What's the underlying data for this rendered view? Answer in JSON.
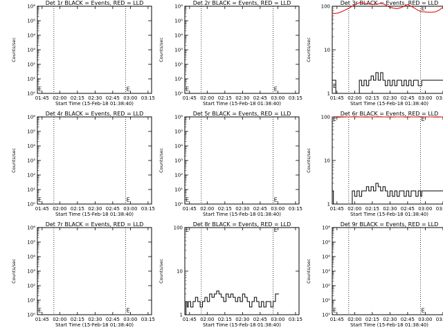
{
  "figure": {
    "x_ticks": [
      "01:45",
      "02:00",
      "02:15",
      "02:30",
      "02:45",
      "03:00",
      "03:15"
    ],
    "x_label": "Start Time (15-Feb-18 01:38:40)",
    "y_label": "Counts/sec",
    "colors": {
      "events": "#000000",
      "lld": "#e00000"
    }
  },
  "chart_data": [
    {
      "type": "line",
      "title": "Det 1r BLACK = Events, RED = LLD",
      "y_scale": "log",
      "yticks": [
        "10⁰",
        "10¹",
        "10²",
        "10³",
        "10⁴",
        "10⁵",
        "10⁶"
      ],
      "ylim": [
        1,
        1000000
      ],
      "xlim_minutes": [
        101,
        198
      ],
      "dotted_lines_minutes": [
        115,
        176
      ],
      "markers": [
        {
          "text": "E",
          "x_minutes": 101,
          "y": 2
        },
        {
          "text": "E",
          "x_minutes": 176,
          "y": 2
        }
      ],
      "series": []
    },
    {
      "type": "line",
      "title": "Det 2r BLACK = Events, RED = LLD",
      "y_scale": "log",
      "yticks": [
        "10⁰",
        "10¹",
        "10²",
        "10³",
        "10⁴",
        "10⁵",
        "10⁶"
      ],
      "ylim": [
        1,
        1000000
      ],
      "xlim_minutes": [
        101,
        198
      ],
      "dotted_lines_minutes": [
        115,
        176
      ],
      "markers": [
        {
          "text": "E",
          "x_minutes": 101,
          "y": 2
        },
        {
          "text": "E",
          "x_minutes": 176,
          "y": 2
        }
      ],
      "series": []
    },
    {
      "type": "line",
      "title": "Det 3r BLACK = Events, RED = LLD",
      "y_scale": "log",
      "yticks": [
        "1",
        "10",
        "100"
      ],
      "ylim": [
        1,
        100
      ],
      "xlim_minutes": [
        101,
        198
      ],
      "dotted_lines_minutes": [
        115,
        176
      ],
      "markers": [
        {
          "text": "E",
          "x_minutes": 101,
          "y": 1.5
        },
        {
          "text": "E",
          "x_minutes": 176,
          "y": 90
        }
      ],
      "series": [
        {
          "color": "#e00000",
          "style": "line",
          "x": [
            101,
            103,
            106,
            109,
            112,
            115,
            118,
            121,
            124,
            127,
            130,
            133,
            136,
            139,
            142,
            145,
            148,
            150,
            153,
            156,
            159,
            162,
            165,
            168,
            171,
            174,
            177,
            180,
            183,
            186,
            189,
            192,
            195,
            198
          ],
          "y": [
            70,
            68,
            70,
            75,
            82,
            90,
            100,
            110,
            120,
            118,
            115,
            112,
            110,
            112,
            115,
            112,
            100,
            95,
            90,
            88,
            92,
            100,
            110,
            100,
            90,
            80,
            75,
            74,
            73,
            73,
            75,
            82,
            95,
            110
          ]
        },
        {
          "color": "#000000",
          "style": "step",
          "x": [
            101,
            103,
            104,
            122,
            124,
            126,
            128,
            130,
            132,
            134,
            136,
            138,
            140,
            142,
            144,
            146,
            148,
            150,
            152,
            154,
            156,
            158,
            160,
            162,
            164,
            166,
            168,
            170,
            172,
            174,
            176,
            177,
            178,
            198
          ],
          "y": [
            2,
            2,
            1,
            1,
            2,
            1.5,
            2,
            1.5,
            2,
            2.5,
            2,
            3,
            2,
            3,
            2,
            1.5,
            2,
            1.5,
            2,
            1.5,
            2,
            2,
            1.5,
            2,
            1.5,
            2,
            1.5,
            2,
            2,
            1.5,
            1.5,
            2,
            2,
            2
          ]
        }
      ]
    },
    {
      "type": "line",
      "title": "Det 4r BLACK = Events, RED = LLD",
      "y_scale": "log",
      "yticks": [
        "10⁰",
        "10¹",
        "10²",
        "10³",
        "10⁴",
        "10⁵",
        "10⁶"
      ],
      "ylim": [
        1,
        1000000
      ],
      "xlim_minutes": [
        101,
        198
      ],
      "dotted_lines_minutes": [
        115,
        176
      ],
      "markers": [
        {
          "text": "E",
          "x_minutes": 101,
          "y": 2
        },
        {
          "text": "E",
          "x_minutes": 176,
          "y": 2
        }
      ],
      "series": []
    },
    {
      "type": "line",
      "title": "Det 5r BLACK = Events, RED = LLD",
      "y_scale": "log",
      "yticks": [
        "10⁰",
        "10¹",
        "10²",
        "10³",
        "10⁴",
        "10⁵",
        "10⁶"
      ],
      "ylim": [
        1,
        1000000
      ],
      "xlim_minutes": [
        101,
        198
      ],
      "dotted_lines_minutes": [
        115,
        176
      ],
      "markers": [
        {
          "text": "E",
          "x_minutes": 101,
          "y": 2
        },
        {
          "text": "E",
          "x_minutes": 176,
          "y": 2
        }
      ],
      "series": []
    },
    {
      "type": "line",
      "title": "Det 6r BLACK = Events, RED = LLD",
      "y_scale": "log",
      "yticks": [
        "1",
        "10",
        "100"
      ],
      "ylim": [
        1,
        100
      ],
      "xlim_minutes": [
        101,
        198
      ],
      "dotted_lines_minutes": [
        115,
        176
      ],
      "markers": [
        {
          "text": "E",
          "x_minutes": 101,
          "y": 90
        },
        {
          "text": "E",
          "x_minutes": 176,
          "y": 90
        }
      ],
      "series": [
        {
          "color": "#e00000",
          "style": "line",
          "x": [
            101,
            105,
            110,
            115,
            120,
            125,
            130,
            135,
            140,
            145,
            150,
            155,
            160,
            165,
            170,
            175,
            180,
            185,
            190,
            195,
            198
          ],
          "y": [
            100,
            98,
            99,
            100,
            101,
            100,
            99,
            100,
            101,
            100,
            99,
            100,
            100,
            99,
            100,
            101,
            100,
            100,
            99,
            100,
            100
          ]
        },
        {
          "color": "#000000",
          "style": "step",
          "x": [
            101,
            102,
            118,
            120,
            122,
            124,
            126,
            128,
            130,
            132,
            134,
            136,
            138,
            140,
            142,
            144,
            146,
            148,
            150,
            152,
            154,
            156,
            158,
            160,
            162,
            164,
            166,
            168,
            170,
            172,
            174,
            176,
            177,
            178,
            198
          ],
          "y": [
            2,
            1,
            2,
            1.5,
            2,
            1.5,
            2,
            2,
            2.5,
            2,
            2.5,
            2,
            3,
            2.5,
            2,
            2.5,
            2,
            1.5,
            2,
            1.5,
            2,
            1.5,
            2,
            2,
            1.5,
            2,
            1.5,
            2,
            2,
            1.5,
            2,
            1.5,
            2,
            2,
            2
          ]
        }
      ]
    },
    {
      "type": "line",
      "title": "Det 7r BLACK = Events, RED = LLD",
      "y_scale": "log",
      "yticks": [
        "10⁰",
        "10¹",
        "10²",
        "10³",
        "10⁴",
        "10⁵",
        "10⁶"
      ],
      "ylim": [
        1,
        1000000
      ],
      "xlim_minutes": [
        101,
        198
      ],
      "dotted_lines_minutes": [
        115,
        176
      ],
      "markers": [
        {
          "text": "E",
          "x_minutes": 101,
          "y": 2
        },
        {
          "text": "E",
          "x_minutes": 176,
          "y": 2
        }
      ],
      "series": []
    },
    {
      "type": "line",
      "title": "Det 8r BLACK = Events, RED = LLD",
      "y_scale": "log",
      "yticks": [
        "1",
        "10",
        "100"
      ],
      "ylim": [
        1,
        100
      ],
      "xlim_minutes": [
        101,
        198
      ],
      "dotted_lines_minutes": [
        115,
        176
      ],
      "markers": [
        {
          "text": "E",
          "x_minutes": 101,
          "y": 90
        },
        {
          "text": "E",
          "x_minutes": 176,
          "y": 90
        }
      ],
      "series": [
        {
          "color": "#000000",
          "style": "step",
          "x": [
            101,
            102,
            103,
            104,
            106,
            108,
            110,
            112,
            114,
            116,
            118,
            120,
            122,
            124,
            126,
            128,
            130,
            132,
            134,
            136,
            138,
            140,
            142,
            144,
            146,
            148,
            150,
            152,
            154,
            156,
            158,
            160,
            162,
            164,
            166,
            168,
            170,
            172,
            174,
            176,
            178,
            181
          ],
          "y": [
            1,
            2,
            1.5,
            2,
            1.5,
            2,
            2.5,
            2,
            1.5,
            2,
            2.5,
            2,
            3,
            2.5,
            3,
            3.5,
            3,
            2.5,
            2,
            3,
            2.5,
            3,
            2.5,
            2,
            2.5,
            2,
            3,
            2.5,
            2,
            1.5,
            2,
            2.5,
            2,
            1.5,
            2,
            1.5,
            2,
            2,
            1.5,
            2,
            3,
            3
          ]
        }
      ]
    },
    {
      "type": "line",
      "title": "Det 9r BLACK = Events, RED = LLD",
      "y_scale": "log",
      "yticks": [
        "10⁰",
        "10¹",
        "10²",
        "10³",
        "10⁴",
        "10⁵",
        "10⁶"
      ],
      "ylim": [
        1,
        1000000
      ],
      "xlim_minutes": [
        101,
        198
      ],
      "dotted_lines_minutes": [
        115,
        176
      ],
      "markers": [
        {
          "text": "E",
          "x_minutes": 101,
          "y": 2
        },
        {
          "text": "E",
          "x_minutes": 176,
          "y": 2
        }
      ],
      "series": []
    }
  ]
}
